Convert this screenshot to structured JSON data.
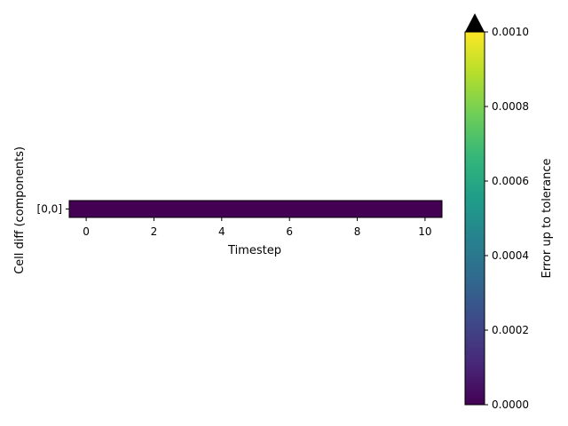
{
  "chart_data": {
    "type": "heatmap",
    "xlabel": "Timestep",
    "ylabel": "Cell diff (components)",
    "x_ticks": [
      0,
      2,
      4,
      6,
      8,
      10
    ],
    "x_range": [
      -0.5,
      10.5
    ],
    "y_categories": [
      "[0,0]"
    ],
    "x": [
      0,
      1,
      2,
      3,
      4,
      5,
      6,
      7,
      8,
      9,
      10
    ],
    "values": [
      [
        0,
        0,
        0,
        0,
        0,
        0,
        0,
        0,
        0,
        0,
        0
      ]
    ],
    "colorbar": {
      "label": "Error up to tolerance",
      "colormap": "viridis",
      "range": [
        0,
        0.001
      ],
      "ticks": [
        "0.0000",
        "0.0002",
        "0.0004",
        "0.0006",
        "0.0008",
        "0.0010"
      ],
      "extend": "max",
      "extend_color": "#000000"
    },
    "colormap_stops": [
      "#440154",
      "#482878",
      "#3e4989",
      "#31688e",
      "#26828e",
      "#1f9e89",
      "#35b779",
      "#6ece58",
      "#b5de2b",
      "#fde725"
    ]
  }
}
